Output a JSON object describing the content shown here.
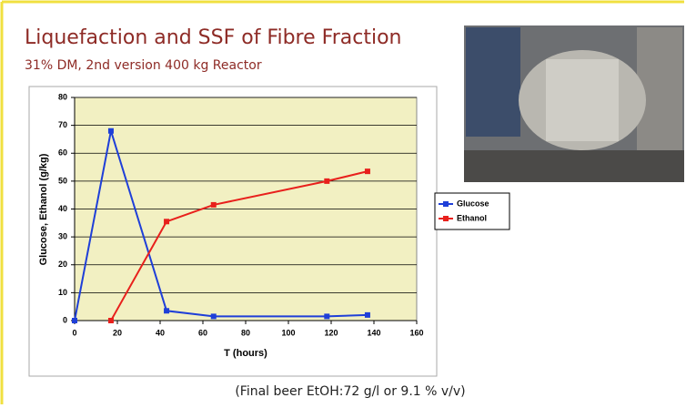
{
  "chart_data": {
    "type": "line",
    "title": "Liquefaction and SSF of Fibre Fraction",
    "subtitle": "31% DM, 2nd version 400 kg Reactor",
    "x_label": "T (hours)",
    "y_label": "Glucose, Ethanol (g/kg)",
    "note": "(Final beer EtOH:72 g/l or 9.1 % v/v)",
    "series": [
      {
        "name": "Glucose",
        "color": "#1f3fd8",
        "x": [
          0,
          17,
          43,
          65,
          118,
          137
        ],
        "values": [
          0,
          68,
          3.5,
          1.5,
          1.5,
          2
        ]
      },
      {
        "name": "Ethanol",
        "color": "#e8201c",
        "x": [
          17,
          43,
          65,
          118,
          137
        ],
        "values": [
          0,
          35.5,
          41.5,
          50,
          53.5
        ]
      }
    ],
    "xlim": [
      0,
      160
    ],
    "xticks": [
      0,
      20,
      40,
      60,
      80,
      100,
      120,
      140,
      160
    ],
    "ylim": [
      0,
      80
    ],
    "yticks": [
      0,
      10,
      20,
      30,
      40,
      50,
      60,
      70,
      80
    ],
    "grid": true,
    "legend": "right",
    "plot_background": "#f2f0c2"
  }
}
